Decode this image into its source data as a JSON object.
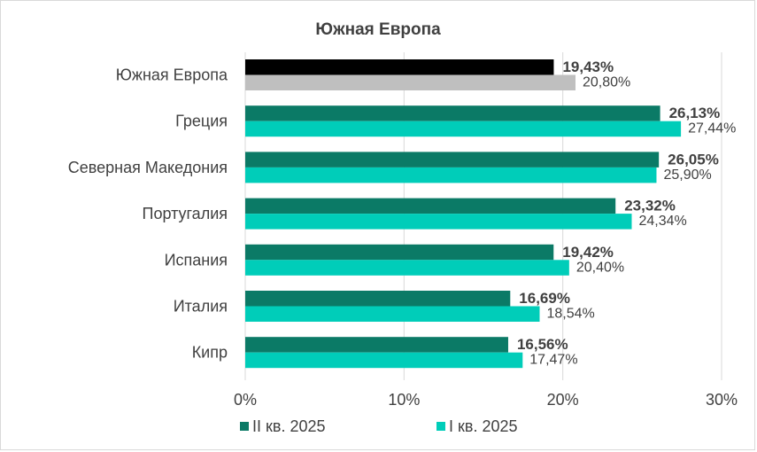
{
  "chart_data": {
    "type": "bar",
    "orientation": "horizontal",
    "title": "Южная Европа",
    "categories": [
      "Южная Европа",
      "Греция",
      "Северная Македония",
      "Португалия",
      "Испания",
      "Италия",
      "Кипр"
    ],
    "series": [
      {
        "name": "II кв. 2025",
        "values": [
          19.43,
          26.13,
          26.05,
          23.32,
          19.42,
          16.69,
          16.56
        ],
        "labels": [
          "19,43%",
          "26,13%",
          "26,05%",
          "23,32%",
          "19,42%",
          "16,69%",
          "16,56%"
        ],
        "color": "#0b7a66",
        "highlight_color": "#000000"
      },
      {
        "name": "I кв. 2025",
        "values": [
          20.8,
          27.44,
          25.9,
          24.34,
          20.4,
          18.54,
          17.47
        ],
        "labels": [
          "20,80%",
          "27,44%",
          "25,90%",
          "24,34%",
          "20,40%",
          "18,54%",
          "17,47%"
        ],
        "color": "#00cdb9",
        "highlight_color": "#bfbfbf"
      }
    ],
    "highlighted_category": "Южная Европа",
    "xlim": [
      0,
      30
    ],
    "xticks": [
      "0%",
      "10%",
      "20%",
      "30%"
    ],
    "grid": "vertical",
    "legend": "bottom"
  }
}
